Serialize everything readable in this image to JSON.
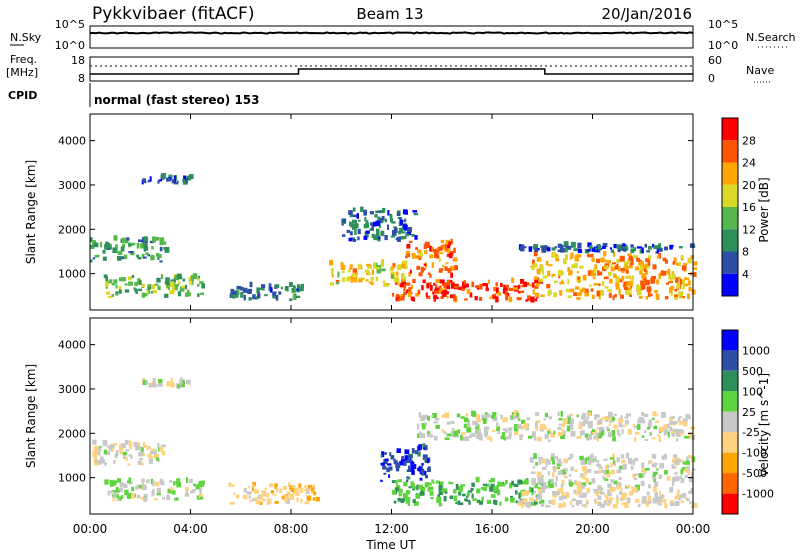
{
  "header": {
    "station": "Pykkvibaer (fitACF)",
    "beam": "Beam 13",
    "date": "20/Jan/2016"
  },
  "side_labels": {
    "nsky": "N.Sky",
    "freq_line1": "Freq.",
    "freq_line2": "[MHz]",
    "cpid": "CPID",
    "nsearch": "N.Search",
    "nave": "Nave"
  },
  "cpid_text": "normal (fast stereo) 153",
  "x_axis": {
    "label": "Time UT",
    "ticks": [
      "00:00",
      "04:00",
      "08:00",
      "12:00",
      "16:00",
      "20:00",
      "00:00"
    ],
    "range_hours": [
      0,
      24
    ]
  },
  "noise_panel": {
    "left_ticks": [
      "10^5",
      "10^0"
    ],
    "right_ticks": [
      "10^5",
      "10^0"
    ]
  },
  "freq_panel": {
    "left_ticks": [
      "18",
      "8"
    ],
    "right_ticks": [
      "60",
      "0"
    ]
  },
  "colors": {
    "power_scale": [
      "#0000ff",
      "#2e4fa6",
      "#2e8f5a",
      "#56b84c",
      "#d9d926",
      "#ffa500",
      "#ff5500",
      "#ff0000"
    ],
    "velocity_scale": [
      "#ff0000",
      "#ff6600",
      "#ffa500",
      "#ffd27f",
      "#c8c8c8",
      "#5ed43c",
      "#2e8f5a",
      "#2e4fa6",
      "#0000ff"
    ]
  },
  "chart_data": [
    {
      "type": "heatmap",
      "title": "Power",
      "xlabel": "Time UT",
      "ylabel": "Slant Range [km]",
      "xlim": [
        0,
        24
      ],
      "ylim": [
        180,
        4600
      ],
      "yticks": [
        "1000",
        "2000",
        "3000",
        "4000"
      ],
      "colorbar": {
        "label": "Power [dB]",
        "ticks": [
          "28",
          "24",
          "20",
          "16",
          "12",
          "8",
          "4"
        ],
        "range": [
          0,
          32
        ]
      },
      "echo_regions": [
        {
          "t_start": 0.0,
          "t_end": 3.0,
          "range_start": 1250,
          "range_end": 1750,
          "power_db": 11
        },
        {
          "t_start": 0.5,
          "t_end": 4.5,
          "range_start": 450,
          "range_end": 900,
          "power_db": 14
        },
        {
          "t_start": 2.0,
          "t_end": 4.0,
          "range_start": 3000,
          "range_end": 3150,
          "power_db": 6
        },
        {
          "t_start": 5.5,
          "t_end": 8.5,
          "range_start": 380,
          "range_end": 700,
          "power_db": 8
        },
        {
          "t_start": 9.5,
          "t_end": 12.5,
          "range_start": 700,
          "range_end": 1200,
          "power_db": 20
        },
        {
          "t_start": 10.0,
          "t_end": 13.0,
          "range_start": 1700,
          "range_end": 2400,
          "power_db": 7
        },
        {
          "t_start": 12.5,
          "t_end": 14.5,
          "range_start": 900,
          "range_end": 1700,
          "power_db": 24
        },
        {
          "t_start": 12.0,
          "t_end": 18.0,
          "range_start": 350,
          "range_end": 800,
          "power_db": 28
        },
        {
          "t_start": 17.5,
          "t_end": 24.0,
          "range_start": 400,
          "range_end": 1400,
          "power_db": 22
        },
        {
          "t_start": 17.0,
          "t_end": 24.0,
          "range_start": 1450,
          "range_end": 1600,
          "power_db": 6
        }
      ]
    },
    {
      "type": "heatmap",
      "title": "Velocity",
      "xlabel": "Time UT",
      "ylabel": "Slant Range [km]",
      "xlim": [
        0,
        24
      ],
      "ylim": [
        180,
        4600
      ],
      "yticks": [
        "1000",
        "2000",
        "3000",
        "4000"
      ],
      "colorbar": {
        "label": "Velocity [m s^-1]",
        "ticks": [
          "1000",
          "500",
          "100",
          "25",
          "-25",
          "-100",
          "-500",
          "-1000"
        ],
        "range": [
          -1250,
          1250
        ]
      },
      "echo_regions": [
        {
          "t_start": 0.0,
          "t_end": 3.0,
          "range_start": 1250,
          "range_end": 1750,
          "velocity": -80
        },
        {
          "t_start": 0.5,
          "t_end": 4.5,
          "range_start": 450,
          "range_end": 900,
          "velocity": 60
        },
        {
          "t_start": 2.0,
          "t_end": 4.0,
          "range_start": 3000,
          "range_end": 3150,
          "velocity": 0
        },
        {
          "t_start": 5.5,
          "t_end": 9.0,
          "range_start": 380,
          "range_end": 800,
          "velocity": -300
        },
        {
          "t_start": 11.5,
          "t_end": 13.5,
          "range_start": 900,
          "range_end": 1750,
          "velocity": 900
        },
        {
          "t_start": 12.0,
          "t_end": 18.0,
          "range_start": 350,
          "range_end": 900,
          "velocity": 400
        },
        {
          "t_start": 17.5,
          "t_end": 24.0,
          "range_start": 700,
          "range_end": 1450,
          "velocity": 0
        },
        {
          "t_start": 13.0,
          "t_end": 24.0,
          "range_start": 1800,
          "range_end": 2400,
          "velocity": 0
        },
        {
          "t_start": 17.0,
          "t_end": 24.0,
          "range_start": 300,
          "range_end": 700,
          "velocity": -150
        }
      ]
    }
  ]
}
